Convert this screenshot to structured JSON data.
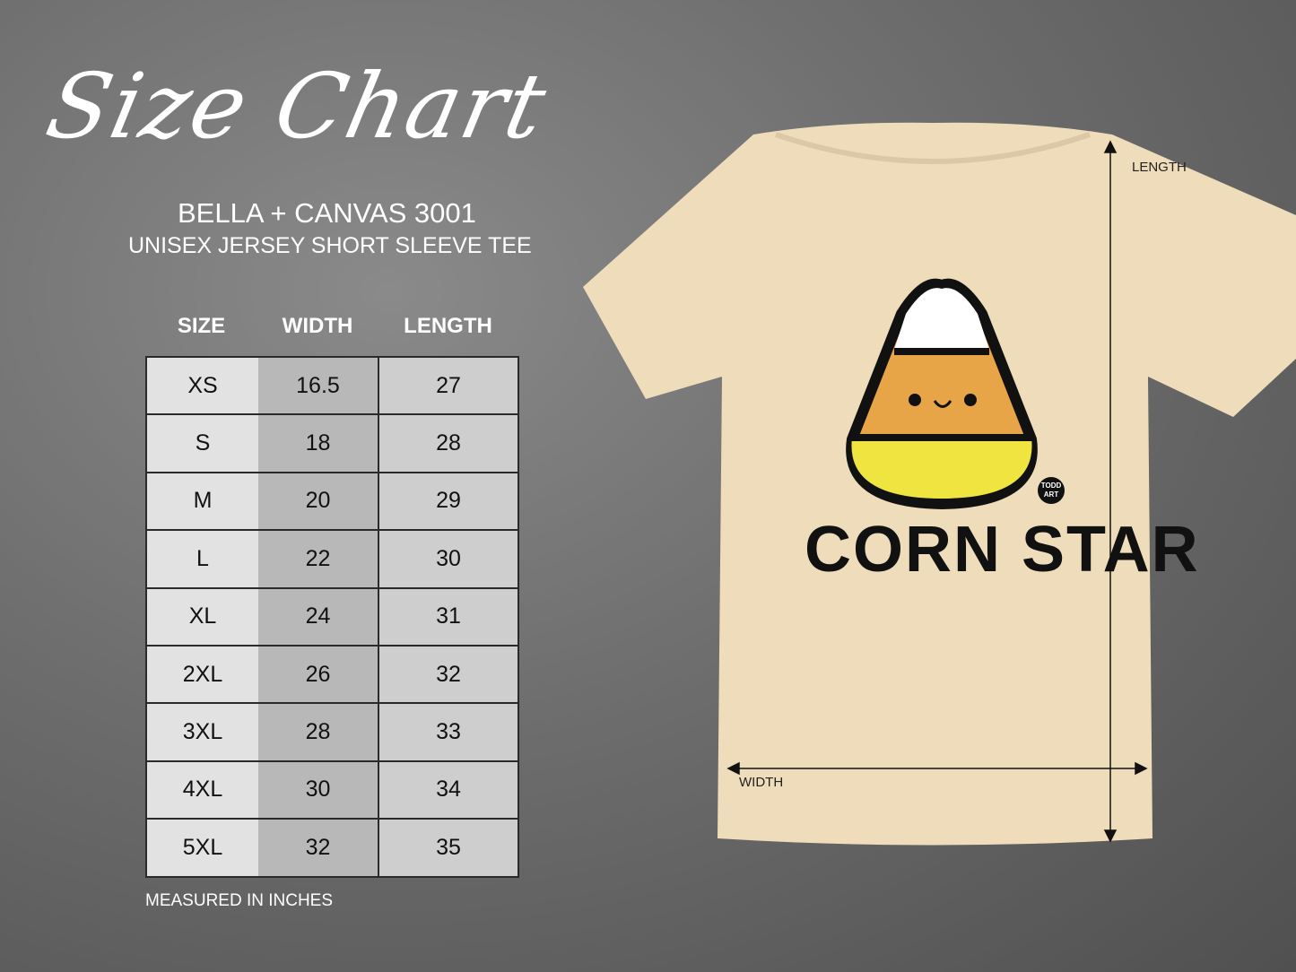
{
  "title": "Size Chart",
  "brand_model": "BELLA + CANVAS 3001",
  "product": "UNISEX JERSEY SHORT SLEEVE TEE",
  "table": {
    "headers": [
      "SIZE",
      "WIDTH",
      "LENGTH"
    ],
    "rows": [
      [
        "XS",
        "16.5",
        "27"
      ],
      [
        "S",
        "18",
        "28"
      ],
      [
        "M",
        "20",
        "29"
      ],
      [
        "L",
        "22",
        "30"
      ],
      [
        "XL",
        "24",
        "31"
      ],
      [
        "2XL",
        "26",
        "32"
      ],
      [
        "3XL",
        "28",
        "33"
      ],
      [
        "4XL",
        "30",
        "34"
      ],
      [
        "5XL",
        "32",
        "35"
      ]
    ]
  },
  "note": "MEASURED IN INCHES",
  "shirt": {
    "print_text": "CORN STAR",
    "logo_text": [
      "TODD",
      "ART"
    ],
    "length_label": "LENGTH",
    "width_label": "WIDTH",
    "color": "#eedcba"
  }
}
